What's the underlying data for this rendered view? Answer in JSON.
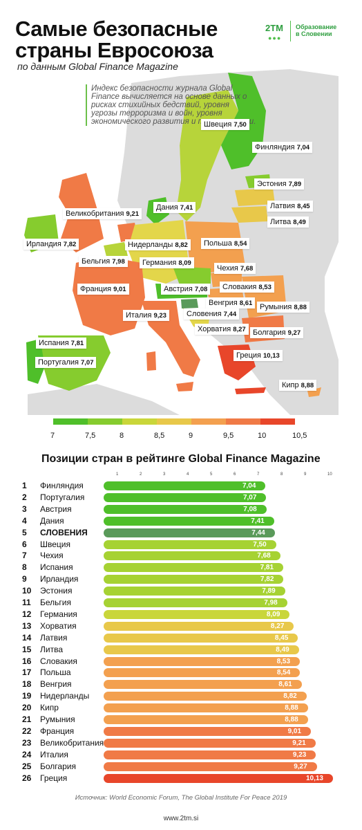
{
  "header": {
    "title_line1": "Самые безопасные",
    "title_line2": "страны Евросоюза",
    "subtitle": "по данным Global Finance Magazine",
    "logo_mark": "2TM",
    "logo_text_line1": "Образование",
    "logo_text_line2": "в Словении"
  },
  "intro_text": "Индекс безопасности журнала Global Finance вычисляется на основе данных о рисках стихийных бедствий, уровня угрозы терроризма и войн, уровня экономического развития и преступности.",
  "colors": {
    "scale": [
      "#4fbf2a",
      "#86cc2e",
      "#c9d63a",
      "#e8c84a",
      "#f3a04f",
      "#f07a46",
      "#e8462a"
    ],
    "slovenia": "#5a9a5a",
    "land_other": "#dcdcdc",
    "sea": "#ffffff"
  },
  "map_labels": [
    {
      "name": "Швеция",
      "value": "7,50"
    },
    {
      "name": "Финляндия",
      "value": "7,04"
    },
    {
      "name": "Эстония",
      "value": "7,89"
    },
    {
      "name": "Латвия",
      "value": "8,45"
    },
    {
      "name": "Литва",
      "value": "8,49"
    },
    {
      "name": "Дания",
      "value": "7,41"
    },
    {
      "name": "Великобритания",
      "value": "9,21"
    },
    {
      "name": "Ирландия",
      "value": "7,82"
    },
    {
      "name": "Нидерланды",
      "value": "8,82"
    },
    {
      "name": "Польша",
      "value": "8,54"
    },
    {
      "name": "Бельгия",
      "value": "7,98"
    },
    {
      "name": "Германия",
      "value": "8,09"
    },
    {
      "name": "Чехия",
      "value": "7,68"
    },
    {
      "name": "Франция",
      "value": "9,01"
    },
    {
      "name": "Австрия",
      "value": "7,08"
    },
    {
      "name": "Словакия",
      "value": "8,53"
    },
    {
      "name": "Венгрия",
      "value": "8,61"
    },
    {
      "name": "Румыния",
      "value": "8,88"
    },
    {
      "name": "Италия",
      "value": "9,23"
    },
    {
      "name": "Словения",
      "value": "7,44"
    },
    {
      "name": "Хорватия",
      "value": "8,27"
    },
    {
      "name": "Болгария",
      "value": "9,27"
    },
    {
      "name": "Испания",
      "value": "7,81"
    },
    {
      "name": "Греция",
      "value": "10,13"
    },
    {
      "name": "Португалия",
      "value": "7,07"
    },
    {
      "name": "Кипр",
      "value": "8,88"
    }
  ],
  "scale_ticks": [
    "7",
    "7,5",
    "8",
    "8,5",
    "9",
    "9,5",
    "10",
    "10,5"
  ],
  "chart_data": {
    "type": "bar",
    "title": "Позиции стран в рейтинге Global Finance Magazine",
    "x_axis_ticks": [
      "1",
      "2",
      "3",
      "4",
      "5",
      "6",
      "7",
      "8",
      "9",
      "10"
    ],
    "xlim": [
      0,
      10
    ],
    "categories": [
      "Финляндия",
      "Португалия",
      "Австрия",
      "Дания",
      "СЛОВЕНИЯ",
      "Швеция",
      "Чехия",
      "Испания",
      "Ирландия",
      "Эстония",
      "Бельгия",
      "Германия",
      "Хорватия",
      "Латвия",
      "Литва",
      "Словакия",
      "Польша",
      "Венгрия",
      "Нидерланды",
      "Кипр",
      "Румыния",
      "Франция",
      "Великобритания",
      "Италия",
      "Болгария",
      "Греция"
    ],
    "ranks": [
      "1",
      "2",
      "3",
      "4",
      "5",
      "6",
      "7",
      "8",
      "9",
      "10",
      "11",
      "12",
      "13",
      "14",
      "15",
      "16",
      "17",
      "18",
      "19",
      "20",
      "21",
      "22",
      "23",
      "24",
      "25",
      "26"
    ],
    "values": [
      7.04,
      7.07,
      7.08,
      7.41,
      7.44,
      7.5,
      7.68,
      7.81,
      7.82,
      7.89,
      7.98,
      8.09,
      8.27,
      8.45,
      8.49,
      8.53,
      8.54,
      8.61,
      8.82,
      8.88,
      8.88,
      9.01,
      9.21,
      9.23,
      9.27,
      10.13
    ],
    "value_labels": [
      "7,04",
      "7,07",
      "7,08",
      "7,41",
      "7,44",
      "7,50",
      "7,68",
      "7,81",
      "7,82",
      "7,89",
      "7,98",
      "8,09",
      "8,27",
      "8,45",
      "8,49",
      "8,53",
      "8,54",
      "8,61",
      "8,82",
      "8,88",
      "8,88",
      "9,01",
      "9,21",
      "9,23",
      "9,27",
      "10,13"
    ],
    "highlight": "СЛОВЕНИЯ"
  },
  "footer": {
    "source": "Источник: World Economic Forum, The Global Institute For Peace 2019",
    "site": "www.2tm.si"
  }
}
